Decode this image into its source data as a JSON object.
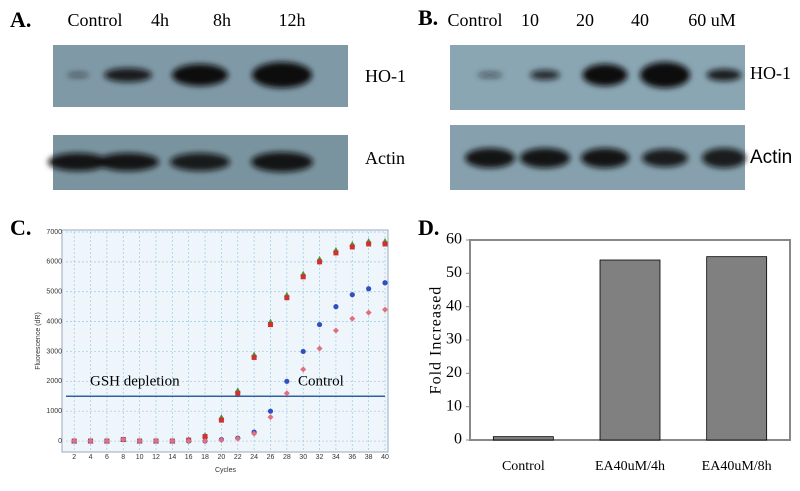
{
  "blots": [
    {
      "panel_label": "A.",
      "lanes": [
        "Control",
        "4h",
        "8h",
        "12h"
      ],
      "bands": [
        "HO-1",
        "Actin"
      ]
    },
    {
      "panel_label": "B.",
      "lanes": [
        "Control",
        "10",
        "20",
        "40",
        "60 uM"
      ],
      "bands": [
        "HO-1",
        "Actin"
      ]
    }
  ],
  "chart_data": [
    {
      "type": "scatter",
      "panel_label": "C.",
      "x_label": "Cycles",
      "y_label": "Fluorescence (dR)",
      "x": [
        2,
        4,
        6,
        8,
        10,
        12,
        14,
        16,
        18,
        20,
        22,
        24,
        26,
        28,
        30,
        32,
        34,
        36,
        38,
        40
      ],
      "series": [
        {
          "color": "#3a9a3a",
          "marker": "triangle",
          "values": [
            0,
            0,
            0,
            50,
            0,
            0,
            0,
            50,
            200,
            800,
            1700,
            2900,
            4000,
            4900,
            5600,
            6100,
            6400,
            6600,
            6700,
            6700
          ]
        },
        {
          "color": "#d03030",
          "marker": "square",
          "values": [
            0,
            0,
            0,
            50,
            0,
            0,
            0,
            30,
            150,
            700,
            1600,
            2800,
            3900,
            4800,
            5500,
            6000,
            6300,
            6500,
            6600,
            6600
          ]
        },
        {
          "color": "#3050c0",
          "marker": "circle",
          "values": [
            0,
            0,
            0,
            50,
            0,
            0,
            0,
            0,
            0,
            50,
            100,
            300,
            1000,
            2000,
            3000,
            3900,
            4500,
            4900,
            5100,
            5300
          ]
        },
        {
          "color": "#e07080",
          "marker": "diamond",
          "values": [
            0,
            0,
            0,
            50,
            0,
            0,
            0,
            0,
            0,
            30,
            80,
            250,
            800,
            1600,
            2400,
            3100,
            3700,
            4100,
            4300,
            4400
          ]
        }
      ],
      "threshold": 1500,
      "annotations": [
        "GSH depletion",
        "Control"
      ],
      "xlim": [
        1,
        40
      ],
      "xticks": [
        2,
        4,
        6,
        8,
        10,
        12,
        14,
        16,
        18,
        20,
        22,
        24,
        26,
        28,
        30,
        32,
        34,
        36,
        38,
        40
      ],
      "ylim": [
        -300,
        7000
      ],
      "yticks": [
        0,
        1000,
        2000,
        3000,
        4000,
        5000,
        6000,
        7000
      ],
      "grid": true
    },
    {
      "type": "bar",
      "panel_label": "D.",
      "y_label": "Fold Increased",
      "categories": [
        "Control",
        "EA40uM/4h",
        "EA40uM/8h"
      ],
      "values": [
        1,
        54,
        55
      ],
      "color": "#808080",
      "ylim": [
        0,
        60
      ],
      "yticks": [
        0,
        10,
        20,
        30,
        40,
        50,
        60
      ]
    }
  ]
}
